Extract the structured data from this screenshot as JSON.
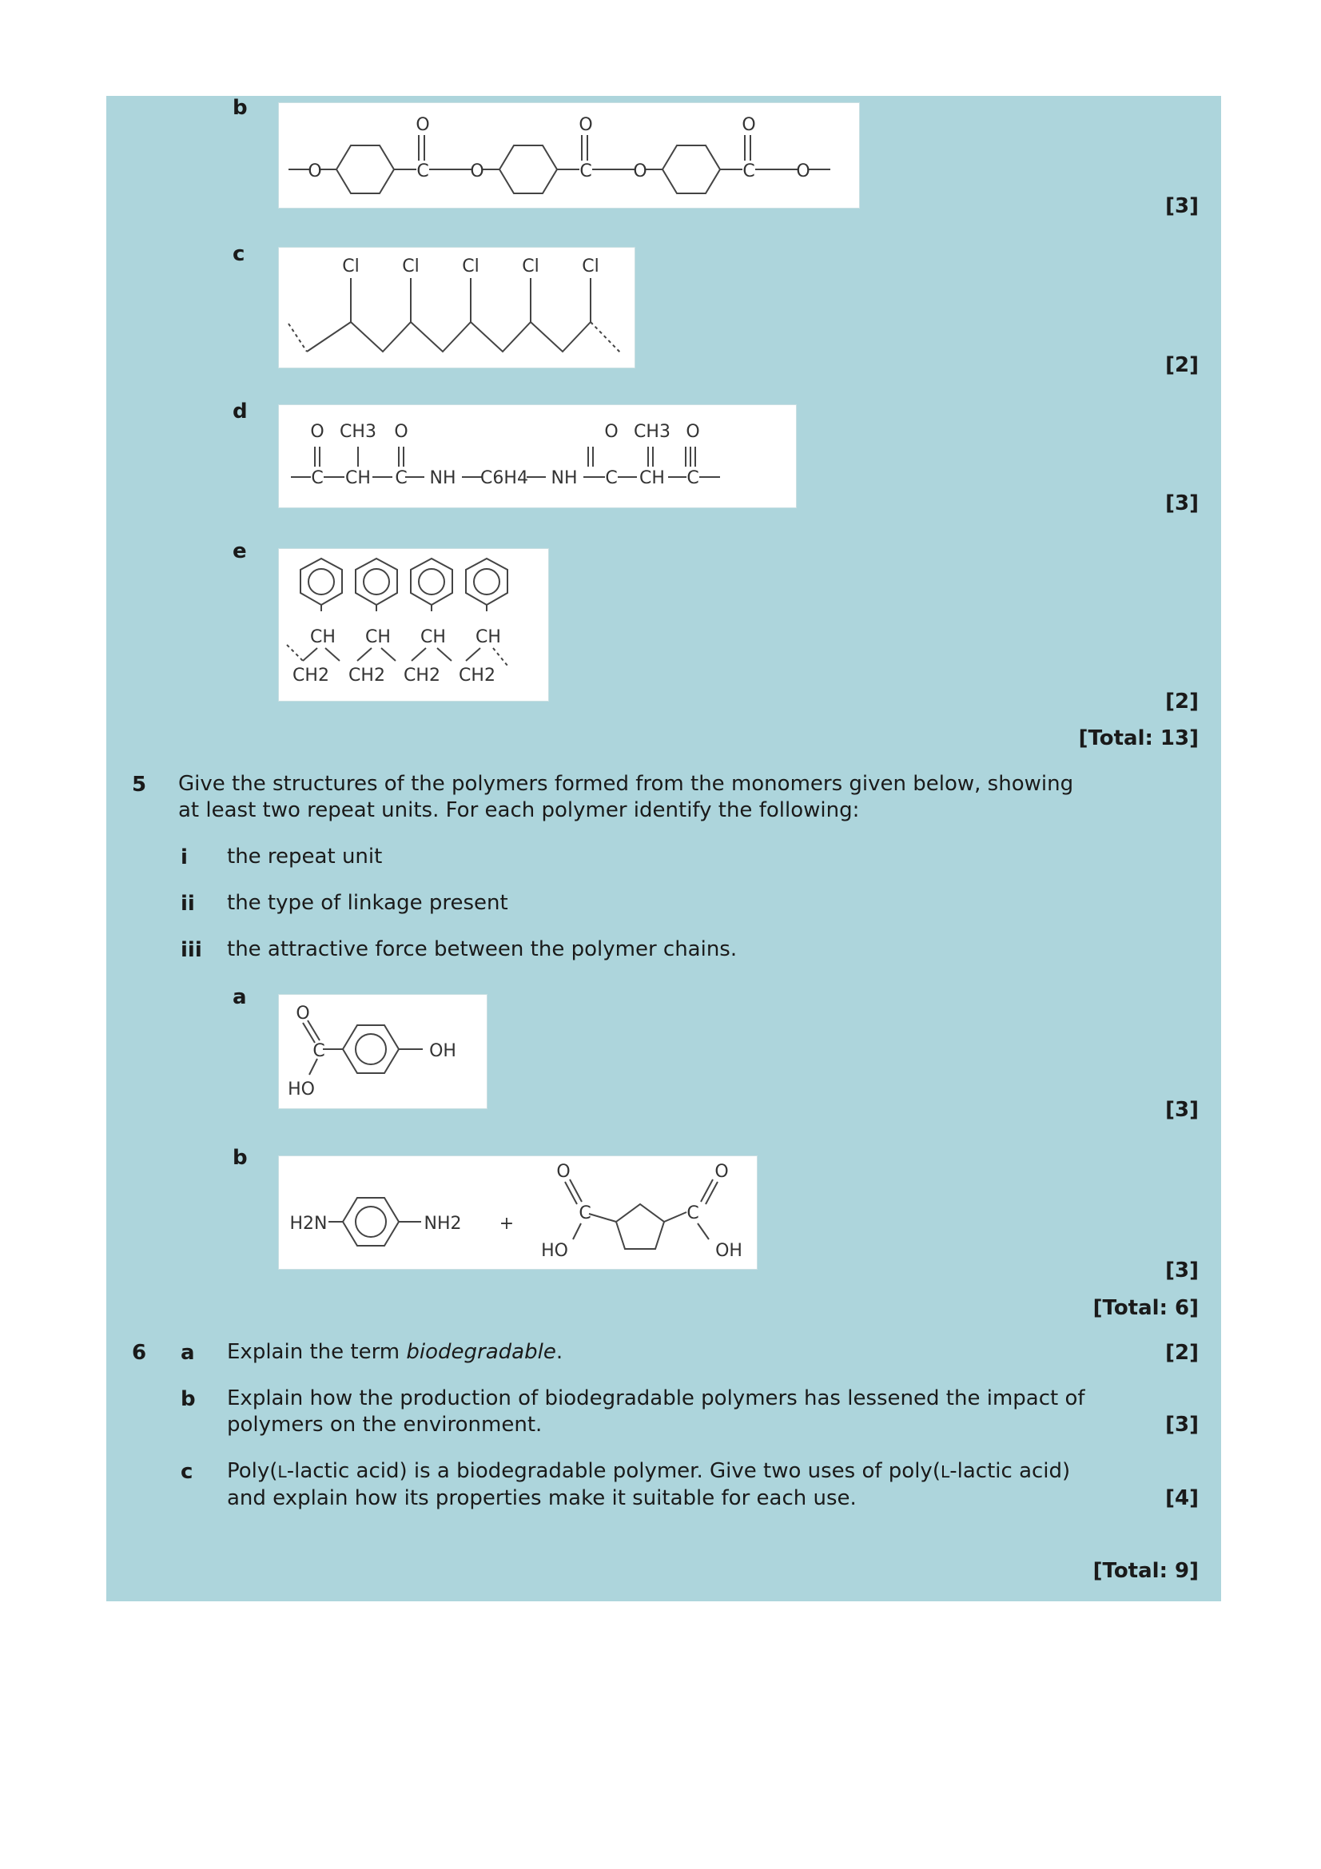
{
  "q4": {
    "b": {
      "label": "b",
      "mark": "[3]"
    },
    "c": {
      "label": "c",
      "mark": "[2]"
    },
    "d": {
      "label": "d",
      "mark": "[3]"
    },
    "e": {
      "label": "e",
      "mark": "[2]"
    },
    "total": "[Total: 13]"
  },
  "q5": {
    "number": "5",
    "intro": "Give the structures of the polymers formed from the monomers given below, showing at least two repeat units. For each polymer identify the following:",
    "items": [
      {
        "num": "i",
        "text": "the repeat unit"
      },
      {
        "num": "ii",
        "text": "the type of linkage present"
      },
      {
        "num": "iii",
        "text": "the attractive force between the polymer chains."
      }
    ],
    "a": {
      "label": "a",
      "mark": "[3]"
    },
    "b": {
      "label": "b",
      "mark": "[3]"
    },
    "total": "[Total: 6]"
  },
  "q6": {
    "number": "6",
    "a": {
      "label": "a",
      "text_before": "Explain the term ",
      "text_em": "biodegradable",
      "text_after": ".",
      "mark": "[2]"
    },
    "b": {
      "label": "b",
      "text": "Explain how the production of biodegradable polymers has lessened the impact of polymers on the environment.",
      "mark": "[3]"
    },
    "c": {
      "label": "c",
      "text_1": "Poly(",
      "sc_1": "L",
      "text_2": "-lactic acid) is a biodegradable polymer. Give two uses of poly(",
      "sc_2": "L",
      "text_3": "-lactic acid) and explain how its properties make it suitable for each use.",
      "mark": "[4]"
    },
    "total": "[Total: 9]"
  },
  "structures": {
    "atom_o": "O",
    "atom_c": "C",
    "atom_cl": "Cl",
    "ch3": "CH3",
    "ch": "CH",
    "ch2": "CH2",
    "nh": "NH",
    "c6h4": "C6H4",
    "oh": "OH",
    "ho": "HO",
    "h2n": "H2N",
    "nh2": "NH2",
    "plus": "+"
  }
}
